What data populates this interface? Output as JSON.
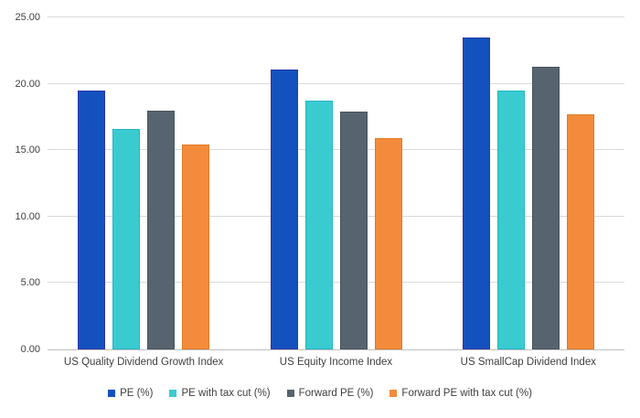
{
  "chart_data": {
    "type": "bar",
    "title": "",
    "categories": [
      "US Quality Dividend Growth Index",
      "US Equity Income Index",
      "US SmallCap Dividend Index"
    ],
    "series": [
      {
        "name": "PE (%)",
        "color": "#1352be",
        "border_color": "#2f35ae",
        "values": [
          19.5,
          21.1,
          23.5
        ]
      },
      {
        "name": "PE with tax cut (%)",
        "color": "#3acbd1",
        "border_color": "#22b8c3",
        "values": [
          16.6,
          18.7,
          19.5
        ]
      },
      {
        "name": "Forward PE (%)",
        "color": "#57646f",
        "border_color": "#49545e",
        "values": [
          18.0,
          17.9,
          21.3
        ]
      },
      {
        "name": "Forward PE with tax cut (%)",
        "color": "#f38b3c",
        "border_color": "#e37b22",
        "values": [
          15.4,
          15.9,
          17.7
        ]
      }
    ],
    "ylim": [
      0,
      25
    ],
    "ytick_interval": 5,
    "ytick_labels": [
      "0.00",
      "5.00",
      "10.00",
      "15.00",
      "20.00",
      "25.00"
    ],
    "xlabel": "",
    "ylabel": "",
    "grid": "horizontal",
    "legend_position": "bottom"
  },
  "style_colors": {
    "gridline": "#d9d9d9",
    "axis_line": "#c0c0c0",
    "text": "#3f3f3f",
    "background": "#ffffff"
  }
}
